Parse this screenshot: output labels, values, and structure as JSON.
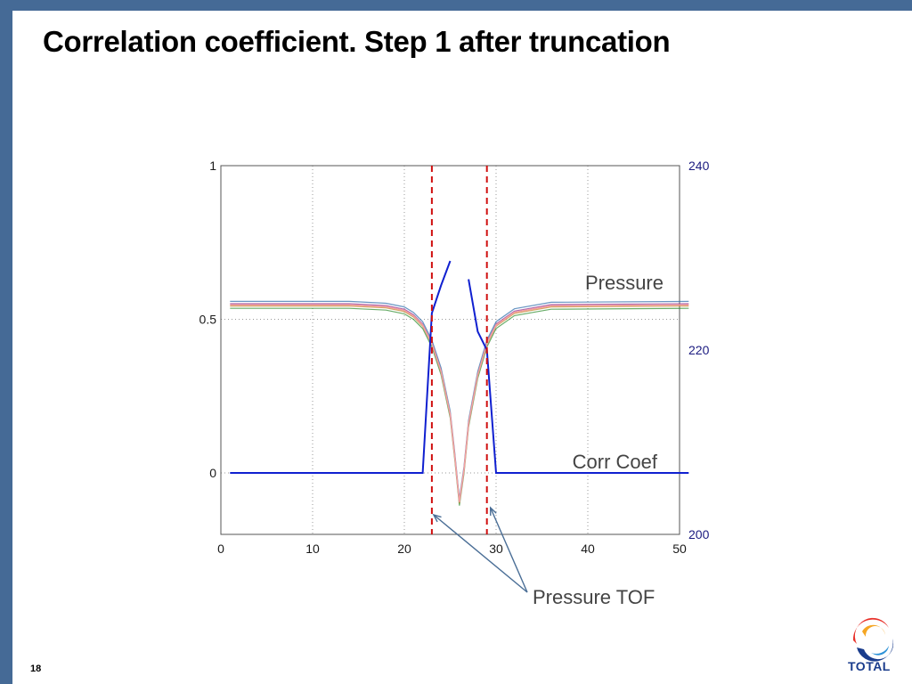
{
  "slide": {
    "title": "Correlation coefficient. Step 1 after truncation",
    "page_number": "18",
    "logo_text": "TOTAL"
  },
  "colors": {
    "frame": "#456a96",
    "corr": "#1020d0",
    "pressure": "#f4a0a0",
    "tof": "#d01010",
    "annotation_arrow": "#4a6e96"
  },
  "chart_data": {
    "type": "line",
    "xlim": [
      0,
      50
    ],
    "x_ticks": [
      "0",
      "10",
      "20",
      "30",
      "40",
      "50"
    ],
    "ylim_left": [
      -0.2,
      1
    ],
    "y_ticks_left": [
      "0",
      "0.5",
      "1"
    ],
    "ylim_right": [
      200,
      240
    ],
    "y_ticks_right": [
      "200",
      "220",
      "240"
    ],
    "grid": true,
    "annotations": {
      "pressure": "Pressure",
      "corr": "Corr Coef",
      "tof": "Pressure TOF"
    },
    "tof_lines_x": [
      23,
      29
    ],
    "series": [
      {
        "axis": "left",
        "x": [
          1,
          22,
          23,
          24,
          25,
          25.2,
          27,
          28,
          29,
          30,
          51
        ],
        "y": [
          0,
          0,
          0.52,
          0.61,
          0.69,
          null,
          0.63,
          0.46,
          0.4,
          0,
          0
        ]
      },
      {
        "axis": "right",
        "x": [
          1,
          14,
          18,
          20,
          21,
          22,
          23,
          24,
          25,
          25.5,
          26,
          26.5,
          27,
          28,
          29,
          30,
          32,
          36,
          51
        ],
        "y": [
          224.9,
          224.9,
          224.7,
          224.3,
          223.7,
          222.7,
          220.7,
          217.7,
          213.0,
          208.5,
          203.5,
          207.0,
          212.0,
          217.3,
          220.7,
          222.7,
          224.1,
          224.8,
          224.9
        ]
      }
    ]
  }
}
